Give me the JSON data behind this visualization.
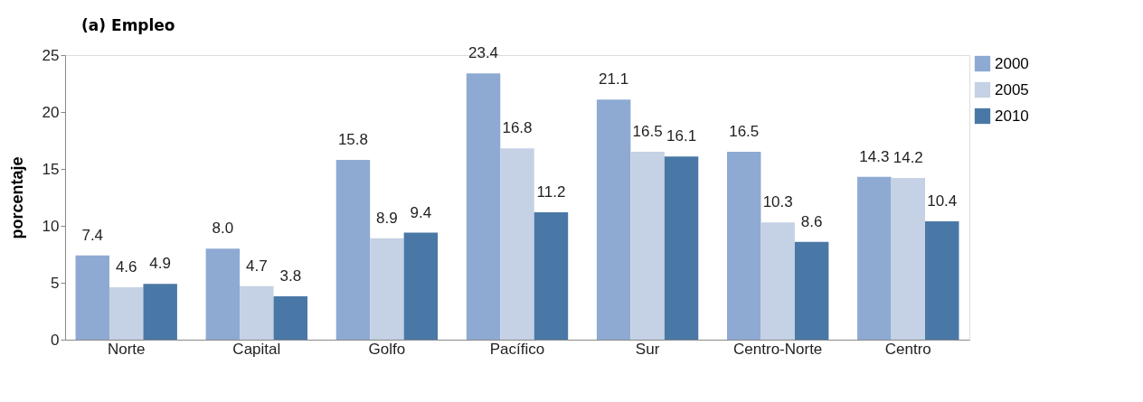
{
  "chart_data": {
    "type": "bar",
    "title": "(a) Empleo",
    "ylabel": "porcentaje",
    "categories": [
      "Norte",
      "Capital",
      "Golfo",
      "Pacífico",
      "Sur",
      "Centro-Norte",
      "Centro"
    ],
    "series": [
      {
        "name": "2000",
        "color": "#8eaad3",
        "values": [
          7.4,
          8.0,
          15.8,
          23.4,
          21.1,
          16.5,
          14.3
        ],
        "value_labels": [
          "7.4",
          "8.0",
          "15.8",
          "23.4",
          "21.1",
          "16.5",
          "14.3"
        ]
      },
      {
        "name": "2005",
        "color": "#c5d1e4",
        "values": [
          4.6,
          4.7,
          8.9,
          16.8,
          16.5,
          10.3,
          14.2
        ],
        "value_labels": [
          "4.6",
          "4.7",
          "8.9",
          "16.8",
          "16.5",
          "10.3",
          "14.2"
        ]
      },
      {
        "name": "2010",
        "color": "#4a78a6",
        "values": [
          4.9,
          3.8,
          9.4,
          11.2,
          16.1,
          8.6,
          10.4
        ],
        "value_labels": [
          "4.9",
          "3.8",
          "9.4",
          "11.2",
          "16.1",
          "8.6",
          "10.4"
        ]
      }
    ],
    "ylim": [
      0,
      25
    ],
    "yticks": [
      0,
      5,
      10,
      15,
      20,
      25
    ],
    "grid": false,
    "legend": "top right"
  }
}
